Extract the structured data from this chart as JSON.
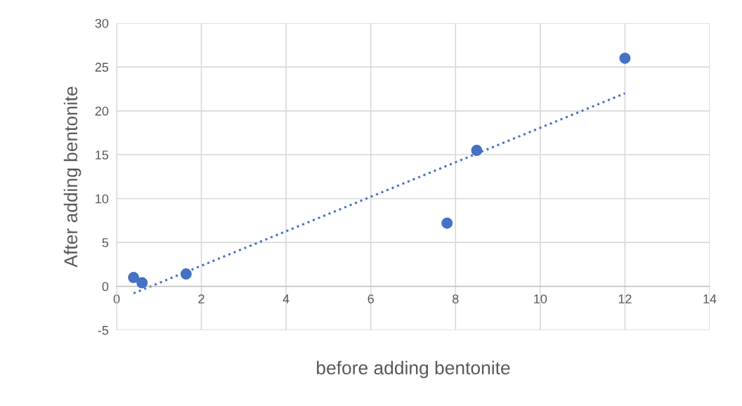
{
  "chart_data": {
    "type": "scatter",
    "xlabel": "before adding bentonite",
    "ylabel": "After adding bentonite",
    "xlim": [
      0,
      14
    ],
    "xticks": [
      0,
      2,
      4,
      6,
      8,
      10,
      12,
      14
    ],
    "ylim": [
      -5,
      30
    ],
    "yticks": [
      -5,
      0,
      5,
      10,
      15,
      20,
      25,
      30
    ],
    "grid": true,
    "legend": false,
    "series": [
      {
        "color": "#4472c4",
        "marker": "circle",
        "x": [
          0.4,
          0.6,
          1.64,
          7.8,
          8.5,
          12.0
        ],
        "values": [
          1.0,
          0.4,
          1.4,
          7.2,
          15.5,
          26.0
        ]
      },
      {
        "type": "line",
        "color": "#4472c4",
        "marker": "none",
        "line_style": "dotted",
        "x": [
          0.4,
          12.0
        ],
        "values": [
          -0.8,
          22.0
        ]
      }
    ]
  }
}
